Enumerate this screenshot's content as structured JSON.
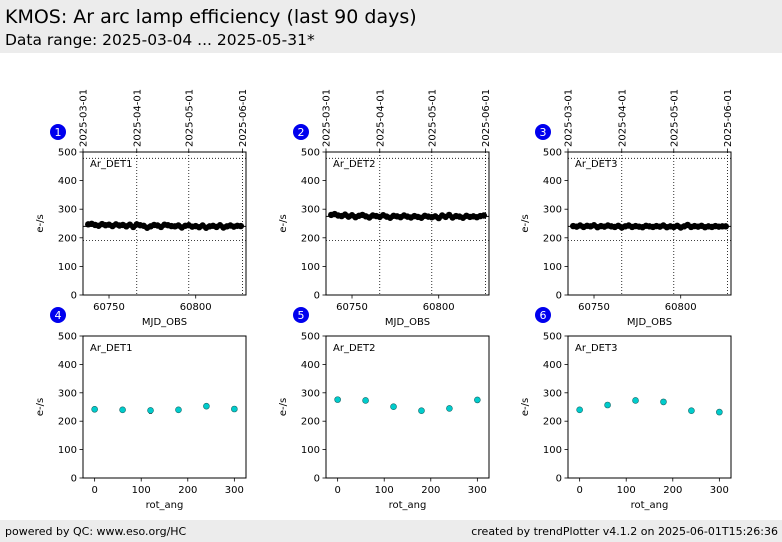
{
  "header": {
    "title": "KMOS: Ar arc lamp efficiency (last 90 days)",
    "subtitle": "Data range: 2025-03-04 ... 2025-05-31*"
  },
  "footer": {
    "left": "powered by QC: www.eso.org/HC",
    "right": "created by trendPlotter v4.1.2 on 2025-06-01T15:26:36"
  },
  "colors": {
    "marker_badge": "#0000ee",
    "top_points": "#000000",
    "bottom_points": "#00cccc",
    "header_bg": "#ececec"
  },
  "chart_data": [
    {
      "type": "scatter",
      "panel": "1",
      "label": "Ar_DET1",
      "xlabel": "MJD_OBS",
      "ylabel": "e-/s",
      "xlim": [
        60735,
        60829
      ],
      "ylim": [
        0,
        500
      ],
      "xticks": [
        60750,
        60800
      ],
      "yticks": [
        0,
        100,
        200,
        300,
        400,
        500
      ],
      "top_date_ticks": [
        {
          "label": "2025-03-01",
          "x": 60735
        },
        {
          "label": "2025-04-01",
          "x": 60766
        },
        {
          "label": "2025-05-01",
          "x": 60796
        },
        {
          "label": "2025-06-01",
          "x": 60827
        }
      ],
      "ref_line": 240,
      "lower_limit": 190,
      "upper_limit": 478,
      "x": [
        60738,
        60740,
        60742,
        60744,
        60746,
        60748,
        60750,
        60752,
        60754,
        60756,
        60758,
        60760,
        60762,
        60764,
        60766,
        60768,
        60770,
        60772,
        60774,
        60776,
        60778,
        60780,
        60782,
        60784,
        60786,
        60788,
        60790,
        60792,
        60794,
        60796,
        60798,
        60800,
        60802,
        60804,
        60806,
        60808,
        60810,
        60812,
        60814,
        60816,
        60818,
        60820,
        60822,
        60824,
        60826
      ],
      "y": [
        247,
        249,
        245,
        242,
        248,
        244,
        246,
        241,
        247,
        243,
        245,
        240,
        246,
        238,
        247,
        244,
        242,
        235,
        240,
        245,
        243,
        238,
        246,
        244,
        241,
        240,
        243,
        236,
        242,
        244,
        239,
        241,
        237,
        243,
        235,
        240,
        242,
        238,
        244,
        236,
        240,
        243,
        239,
        242,
        241
      ]
    },
    {
      "type": "scatter",
      "panel": "2",
      "label": "Ar_DET2",
      "xlabel": "MJD_OBS",
      "ylabel": "e-/s",
      "xlim": [
        60735,
        60829
      ],
      "ylim": [
        0,
        500
      ],
      "xticks": [
        60750,
        60800
      ],
      "yticks": [
        0,
        100,
        200,
        300,
        400,
        500
      ],
      "top_date_ticks": [
        {
          "label": "2025-03-01",
          "x": 60735
        },
        {
          "label": "2025-04-01",
          "x": 60766
        },
        {
          "label": "2025-05-01",
          "x": 60796
        },
        {
          "label": "2025-06-01",
          "x": 60827
        }
      ],
      "ref_line": 275,
      "lower_limit": 190,
      "upper_limit": 478,
      "x": [
        60738,
        60740,
        60742,
        60744,
        60746,
        60748,
        60750,
        60752,
        60754,
        60756,
        60758,
        60760,
        60762,
        60764,
        60766,
        60768,
        60770,
        60772,
        60774,
        60776,
        60778,
        60780,
        60782,
        60784,
        60786,
        60788,
        60790,
        60792,
        60794,
        60796,
        60798,
        60800,
        60802,
        60804,
        60806,
        60808,
        60810,
        60812,
        60814,
        60816,
        60818,
        60820,
        60822,
        60824,
        60826
      ],
      "y": [
        280,
        283,
        278,
        276,
        281,
        274,
        279,
        272,
        277,
        280,
        275,
        271,
        278,
        276,
        273,
        279,
        274,
        270,
        277,
        275,
        272,
        278,
        274,
        271,
        276,
        273,
        270,
        277,
        274,
        272,
        275,
        269,
        278,
        273,
        280,
        271,
        276,
        274,
        270,
        277,
        273,
        275,
        272,
        276,
        278
      ]
    },
    {
      "type": "scatter",
      "panel": "3",
      "label": "Ar_DET3",
      "xlabel": "MJD_OBS",
      "ylabel": "e-/s",
      "xlim": [
        60735,
        60829
      ],
      "ylim": [
        0,
        500
      ],
      "xticks": [
        60750,
        60800
      ],
      "yticks": [
        0,
        100,
        200,
        300,
        400,
        500
      ],
      "top_date_ticks": [
        {
          "label": "2025-03-01",
          "x": 60735
        },
        {
          "label": "2025-04-01",
          "x": 60766
        },
        {
          "label": "2025-05-01",
          "x": 60796
        },
        {
          "label": "2025-06-01",
          "x": 60827
        }
      ],
      "ref_line": 240,
      "lower_limit": 190,
      "upper_limit": 478,
      "x": [
        60738,
        60740,
        60742,
        60744,
        60746,
        60748,
        60750,
        60752,
        60754,
        60756,
        60758,
        60760,
        60762,
        60764,
        60766,
        60768,
        60770,
        60772,
        60774,
        60776,
        60778,
        60780,
        60782,
        60784,
        60786,
        60788,
        60790,
        60792,
        60794,
        60796,
        60798,
        60800,
        60802,
        60804,
        60806,
        60808,
        60810,
        60812,
        60814,
        60816,
        60818,
        60820,
        60822,
        60824,
        60826
      ],
      "y": [
        241,
        239,
        243,
        238,
        242,
        240,
        244,
        237,
        241,
        239,
        243,
        240,
        238,
        242,
        236,
        240,
        243,
        238,
        241,
        239,
        237,
        242,
        240,
        238,
        241,
        239,
        243,
        237,
        240,
        238,
        242,
        236,
        240,
        245,
        238,
        241,
        239,
        242,
        237,
        240,
        238,
        241,
        239,
        240,
        240
      ]
    },
    {
      "type": "scatter",
      "panel": "4",
      "label": "Ar_DET1",
      "xlabel": "rot_ang",
      "ylabel": "e-/s",
      "xlim": [
        -25,
        325
      ],
      "ylim": [
        0,
        500
      ],
      "xticks": [
        0,
        100,
        200,
        300
      ],
      "yticks": [
        0,
        100,
        200,
        300,
        400,
        500
      ],
      "x": [
        0,
        60,
        120,
        180,
        240,
        300
      ],
      "y": [
        242,
        240,
        238,
        240,
        253,
        243
      ],
      "spread_min": [
        232,
        232,
        226,
        232,
        248,
        235
      ],
      "spread_max": [
        252,
        246,
        246,
        248,
        260,
        253
      ]
    },
    {
      "type": "scatter",
      "panel": "5",
      "label": "Ar_DET2",
      "xlabel": "rot_ang",
      "ylabel": "e-/s",
      "xlim": [
        -25,
        325
      ],
      "ylim": [
        0,
        500
      ],
      "xticks": [
        0,
        100,
        200,
        300
      ],
      "yticks": [
        0,
        100,
        200,
        300,
        400,
        500
      ],
      "x": [
        0,
        60,
        120,
        180,
        240,
        300
      ],
      "y": [
        276,
        273,
        251,
        237,
        245,
        275
      ],
      "spread_min": [
        268,
        264,
        246,
        230,
        238,
        265
      ],
      "spread_max": [
        284,
        282,
        256,
        244,
        252,
        284
      ]
    },
    {
      "type": "scatter",
      "panel": "6",
      "label": "Ar_DET3",
      "xlabel": "rot_ang",
      "ylabel": "e-/s",
      "xlim": [
        -25,
        325
      ],
      "ylim": [
        0,
        500
      ],
      "xticks": [
        0,
        100,
        200,
        300
      ],
      "yticks": [
        0,
        100,
        200,
        300,
        400,
        500
      ],
      "x": [
        0,
        60,
        120,
        180,
        240,
        300
      ],
      "y": [
        240,
        257,
        273,
        268,
        237,
        232
      ],
      "spread_min": [
        236,
        253,
        266,
        261,
        233,
        224
      ],
      "spread_max": [
        245,
        262,
        280,
        276,
        241,
        240
      ]
    }
  ]
}
